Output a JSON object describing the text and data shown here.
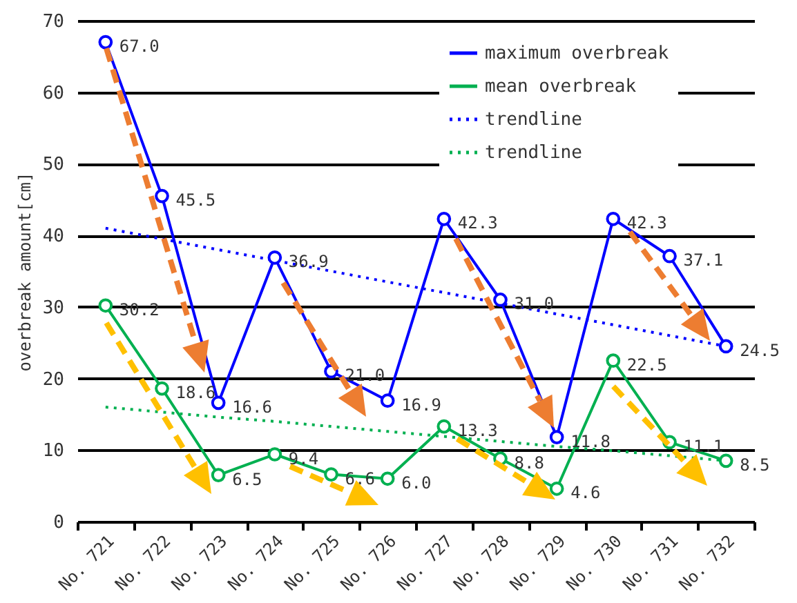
{
  "chart_data": {
    "type": "line",
    "ylabel": "overbreak amount[cm]",
    "categories": [
      "No. 721",
      "No. 722",
      "No. 723",
      "No. 724",
      "No. 725",
      "No. 726",
      "No. 727",
      "No. 728",
      "No. 729",
      "No. 730",
      "No. 731",
      "No. 732"
    ],
    "series": [
      {
        "name": "maximum overbreak",
        "color": "#0000ff",
        "marker": "circle",
        "line_style": "solid",
        "values": [
          67.0,
          45.5,
          16.6,
          36.9,
          21.0,
          16.9,
          42.3,
          31.0,
          11.8,
          42.3,
          37.1,
          24.5
        ],
        "value_labels": [
          "67.0",
          "45.5",
          "16.6",
          "36.9",
          "21.0",
          "16.9",
          "42.3",
          "31.0",
          "11.8",
          "42.3",
          "37.1",
          "24.5"
        ]
      },
      {
        "name": "mean overbreak",
        "color": "#00b050",
        "marker": "circle",
        "line_style": "solid",
        "values": [
          30.2,
          18.6,
          6.5,
          9.4,
          6.6,
          6.0,
          13.3,
          8.8,
          4.6,
          22.5,
          11.1,
          8.5
        ],
        "value_labels": [
          "30.2",
          "18.6",
          "6.5",
          "9.4",
          "6.6",
          "6.0",
          "13.3",
          "8.8",
          "4.6",
          "22.5",
          "11.1",
          "8.5"
        ]
      },
      {
        "name": "trendline",
        "color": "#0000ff",
        "marker": "none",
        "line_style": "dotted",
        "values": [
          41,
          39.5,
          38,
          36.5,
          35,
          33.5,
          32,
          30.5,
          29,
          27.5,
          26,
          24.5
        ]
      },
      {
        "name": "trendline",
        "color": "#00b050",
        "marker": "none",
        "line_style": "dotted",
        "values": [
          16,
          15.3,
          14.6,
          14,
          13.3,
          12.6,
          11.9,
          11.2,
          10.5,
          9.9,
          9.2,
          8.5
        ]
      }
    ],
    "ylim": [
      0,
      70
    ],
    "yticks": [
      0,
      10,
      20,
      30,
      40,
      50,
      60,
      70
    ],
    "grid": "y",
    "legend": "top right"
  }
}
